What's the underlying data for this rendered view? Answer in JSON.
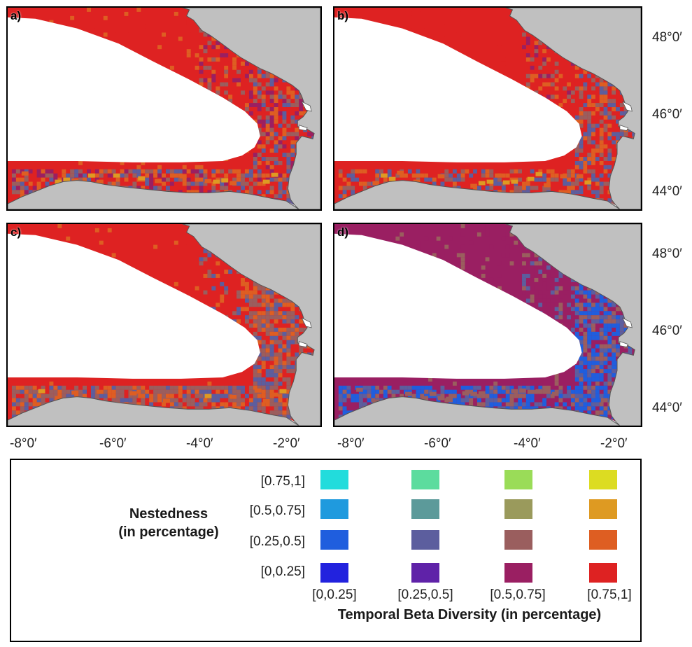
{
  "panels": [
    {
      "id": "a",
      "label": "a)"
    },
    {
      "id": "b",
      "label": "b)"
    },
    {
      "id": "c",
      "label": "c)"
    },
    {
      "id": "d",
      "label": "d)"
    }
  ],
  "latitude_labels": [
    "48°0′",
    "46°0′",
    "44°0′"
  ],
  "longitude_labels": [
    "-8°0′",
    "-6°0′",
    "-4°0′",
    "-2°0′"
  ],
  "legend": {
    "y_title_line1": "Nestedness",
    "y_title_line2": "(in percentage)",
    "x_title": "Temporal Beta Diversity (in percentage)",
    "y_levels": [
      "[0.75,1]",
      "[0.5,0.75]",
      "[0.25,0.5]",
      "[0,0.25]"
    ],
    "x_levels": [
      "[0,0.25]",
      "[0.25,0.5]",
      "[0.5,0.75]",
      "[0.75,1]"
    ],
    "colors": [
      [
        "#22dcdc",
        "#5cdc9e",
        "#9adc58",
        "#dcdc22"
      ],
      [
        "#1f9ade",
        "#5c9a9a",
        "#9a9a5c",
        "#de9a22"
      ],
      [
        "#1f5ede",
        "#5c5e9e",
        "#9a5e5e",
        "#de5e22"
      ],
      [
        "#2222de",
        "#5f22a8",
        "#9a1f62",
        "#de2222"
      ]
    ]
  },
  "land_color": "#c0c0c0",
  "water_color": "#ffffff"
}
